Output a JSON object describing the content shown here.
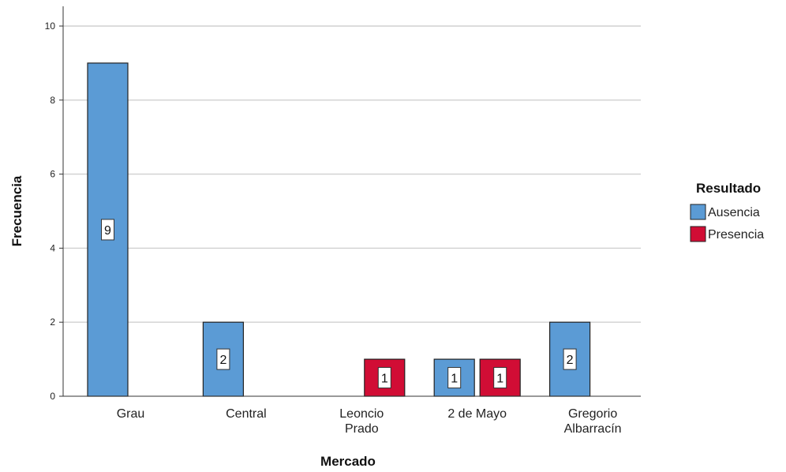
{
  "chart_data": {
    "type": "bar",
    "xlabel": "Mercado",
    "ylabel": "Frecuencia",
    "ylim": [
      0,
      10
    ],
    "yticks": [
      "0",
      "2",
      "4",
      "6",
      "8",
      "10"
    ],
    "categories": [
      [
        "Grau"
      ],
      [
        "Central"
      ],
      [
        "Leoncio",
        "Prado"
      ],
      [
        "2 de Mayo"
      ],
      [
        "Gregorio",
        "Albarracín"
      ]
    ],
    "legend": {
      "title": "Resultado",
      "position": "right"
    },
    "grid": true,
    "series": [
      {
        "name": "Ausencia",
        "color": "#5b9bd5",
        "values": [
          9,
          2,
          null,
          1,
          2
        ]
      },
      {
        "name": "Presencia",
        "color": "#d10d35",
        "values": [
          null,
          null,
          1,
          1,
          null
        ]
      }
    ],
    "data_labels": true
  }
}
